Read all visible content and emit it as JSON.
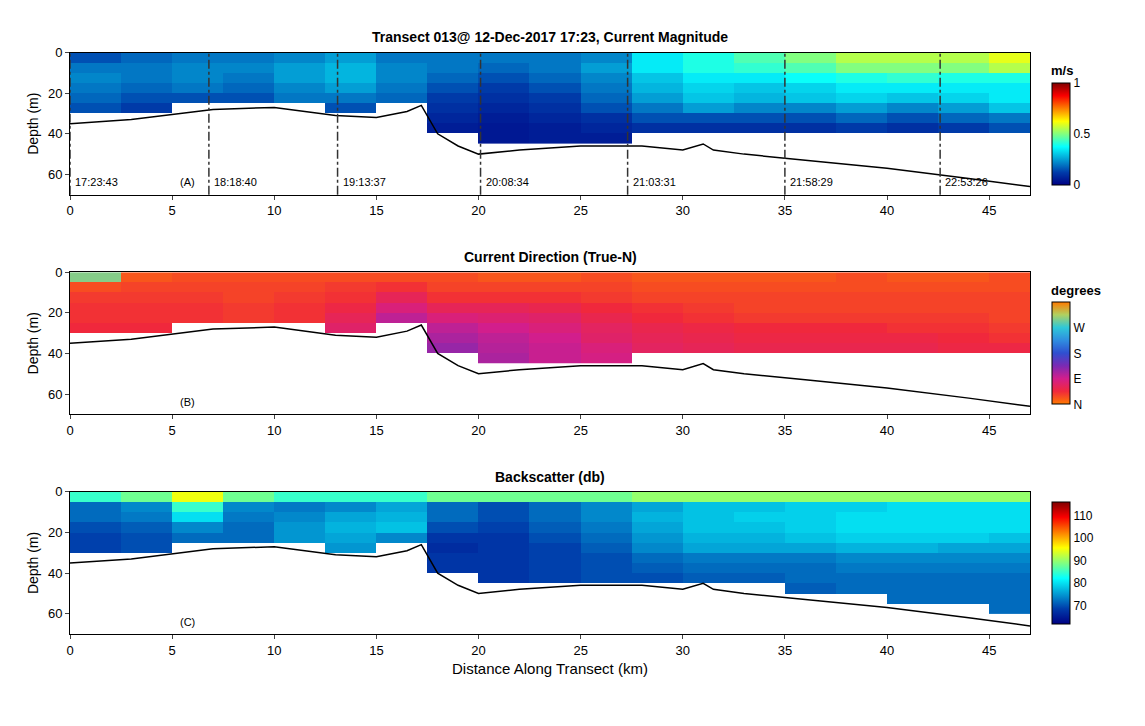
{
  "chart_data": [
    {
      "type": "heatmap",
      "title": "Transect 013@ 12-Dec-2017 17:23, Current Magnitude",
      "panel_label": "(A)",
      "y_label": "Depth (m)",
      "xlim": [
        0,
        47
      ],
      "xticks": [
        0,
        5,
        10,
        15,
        20,
        25,
        30,
        35,
        40,
        45
      ],
      "ylim": [
        70,
        0
      ],
      "yticks": [
        0,
        20,
        40,
        60
      ],
      "colorbar_title": "m/s",
      "zlim": [
        0,
        1
      ],
      "zticks": [
        0,
        0.5,
        1
      ],
      "x": [
        1.25,
        3.75,
        6.25,
        8.75,
        11.25,
        13.75,
        16.25,
        18.75,
        21.25,
        23.75,
        26.25,
        28.75,
        31.25,
        33.75,
        36.25,
        38.75,
        41.25,
        43.75,
        46.25
      ],
      "y": [
        2.5,
        7.5,
        12.5,
        17.5,
        22.5,
        27.5,
        32.5,
        37.5,
        42.5
      ],
      "z": [
        [
          0.15,
          0.18,
          0.2,
          0.2,
          0.22,
          0.25,
          0.2,
          0.2,
          0.2,
          0.2,
          0.22,
          0.35,
          0.4,
          0.45,
          0.5,
          0.55,
          0.55,
          0.55,
          0.6
        ],
        [
          0.2,
          0.2,
          0.22,
          0.22,
          0.25,
          0.28,
          0.22,
          0.2,
          0.18,
          0.2,
          0.25,
          0.35,
          0.4,
          0.42,
          0.45,
          0.5,
          0.5,
          0.5,
          0.55
        ],
        [
          0.22,
          0.2,
          0.22,
          0.2,
          0.25,
          0.28,
          0.22,
          0.18,
          0.15,
          0.18,
          0.22,
          0.3,
          0.35,
          0.35,
          0.38,
          0.4,
          0.42,
          0.4,
          0.4
        ],
        [
          0.2,
          0.18,
          0.2,
          0.18,
          0.22,
          0.25,
          0.2,
          0.15,
          0.12,
          0.15,
          0.2,
          0.28,
          0.32,
          0.3,
          0.32,
          0.35,
          0.35,
          0.35,
          0.35
        ],
        [
          0.18,
          0.15,
          0.15,
          0.15,
          0.2,
          0.2,
          0.18,
          0.12,
          0.1,
          0.12,
          0.18,
          0.25,
          0.3,
          0.28,
          0.3,
          0.32,
          0.3,
          0.32,
          0.35
        ],
        [
          0.15,
          0.12,
          null,
          null,
          null,
          0.15,
          null,
          0.1,
          0.08,
          0.1,
          0.15,
          0.2,
          0.25,
          0.22,
          0.22,
          0.25,
          0.22,
          0.25,
          0.3
        ],
        [
          null,
          null,
          null,
          null,
          null,
          null,
          null,
          0.08,
          0.06,
          0.08,
          0.1,
          0.15,
          0.15,
          0.15,
          0.15,
          0.18,
          0.15,
          0.18,
          0.2
        ],
        [
          null,
          null,
          null,
          null,
          null,
          null,
          null,
          0.06,
          0.05,
          0.06,
          0.08,
          0.1,
          0.1,
          0.1,
          0.1,
          0.12,
          0.1,
          0.12,
          0.15
        ],
        [
          null,
          null,
          null,
          null,
          null,
          null,
          null,
          null,
          0.05,
          0.06,
          0.06,
          null,
          null,
          null,
          null,
          null,
          null,
          null,
          null
        ]
      ],
      "bottom": {
        "x": [
          0,
          3,
          7,
          10,
          13,
          15,
          16.5,
          17.2,
          18,
          19,
          20,
          22,
          25,
          28,
          30,
          31,
          31.5,
          33,
          36,
          40,
          44,
          47
        ],
        "depth": [
          35,
          33,
          28,
          27,
          31,
          32,
          29,
          26,
          40,
          46,
          50,
          48,
          46,
          46,
          48,
          45,
          48,
          50,
          53,
          57,
          62,
          66
        ]
      },
      "markers": [
        {
          "x": 0,
          "label": "17:23:43"
        },
        {
          "x": 6.8,
          "label": "18:18:40"
        },
        {
          "x": 13.1,
          "label": "19:13:37"
        },
        {
          "x": 20.1,
          "label": "20:08:34"
        },
        {
          "x": 27.3,
          "label": "21:03:31"
        },
        {
          "x": 35,
          "label": "21:58:29"
        },
        {
          "x": 42.6,
          "label": "22:53:26"
        }
      ]
    },
    {
      "type": "heatmap",
      "title": "Current Direction (True-N)",
      "panel_label": "(B)",
      "y_label": "Depth (m)",
      "xlim": [
        0,
        47
      ],
      "xticks": [
        0,
        5,
        10,
        15,
        20,
        25,
        30,
        35,
        40,
        45
      ],
      "ylim": [
        70,
        0
      ],
      "yticks": [
        0,
        20,
        40,
        60
      ],
      "colorbar_title": "degrees",
      "zlim": [
        0,
        360
      ],
      "zticks": [
        {
          "value": 0,
          "label": "N"
        },
        {
          "value": 90,
          "label": "E"
        },
        {
          "value": 180,
          "label": "S"
        },
        {
          "value": 270,
          "label": "W"
        }
      ],
      "x": [
        1.25,
        3.75,
        6.25,
        8.75,
        11.25,
        13.75,
        16.25,
        18.75,
        21.25,
        23.75,
        26.25,
        28.75,
        31.25,
        33.75,
        36.25,
        38.75,
        41.25,
        43.75,
        46.25
      ],
      "y": [
        2.5,
        7.5,
        12.5,
        17.5,
        22.5,
        27.5,
        32.5,
        37.5,
        42.5
      ],
      "z": [
        [
          300,
          20,
          25,
          25,
          25,
          25,
          25,
          25,
          20,
          20,
          25,
          20,
          20,
          20,
          20,
          25,
          20,
          20,
          25
        ],
        [
          25,
          30,
          30,
          30,
          30,
          35,
          40,
          30,
          30,
          30,
          30,
          25,
          25,
          25,
          25,
          25,
          25,
          25,
          25
        ],
        [
          35,
          35,
          35,
          30,
          35,
          40,
          60,
          40,
          40,
          40,
          35,
          30,
          30,
          30,
          30,
          30,
          30,
          30,
          30
        ],
        [
          40,
          40,
          40,
          35,
          40,
          50,
          80,
          60,
          60,
          55,
          45,
          40,
          35,
          30,
          30,
          30,
          30,
          30,
          30
        ],
        [
          40,
          40,
          40,
          35,
          40,
          60,
          100,
          80,
          75,
          70,
          55,
          45,
          40,
          35,
          35,
          35,
          35,
          35,
          30
        ],
        [
          45,
          45,
          null,
          null,
          null,
          70,
          null,
          100,
          90,
          80,
          65,
          55,
          50,
          45,
          45,
          45,
          40,
          40,
          35
        ],
        [
          null,
          null,
          null,
          null,
          null,
          null,
          null,
          110,
          100,
          90,
          70,
          60,
          55,
          50,
          50,
          50,
          50,
          45,
          40
        ],
        [
          null,
          null,
          null,
          null,
          null,
          null,
          null,
          120,
          105,
          95,
          80,
          65,
          60,
          55,
          55,
          55,
          55,
          50,
          50
        ],
        [
          null,
          null,
          null,
          null,
          null,
          null,
          null,
          null,
          110,
          95,
          85,
          null,
          null,
          null,
          null,
          null,
          null,
          null,
          null
        ]
      ],
      "bottom": {
        "x": [
          0,
          3,
          7,
          10,
          13,
          15,
          16.5,
          17.2,
          18,
          19,
          20,
          22,
          25,
          28,
          30,
          31,
          31.5,
          33,
          36,
          40,
          44,
          47
        ],
        "depth": [
          35,
          33,
          28,
          27,
          31,
          32,
          29,
          26,
          40,
          46,
          50,
          48,
          46,
          46,
          48,
          45,
          48,
          50,
          53,
          57,
          62,
          66
        ]
      }
    },
    {
      "type": "heatmap",
      "title": "Backscatter (db)",
      "panel_label": "(C)",
      "x_label": "Distance Along Transect (km)",
      "y_label": "Depth (m)",
      "xlim": [
        0,
        47
      ],
      "xticks": [
        0,
        5,
        10,
        15,
        20,
        25,
        30,
        35,
        40,
        45
      ],
      "ylim": [
        70,
        0
      ],
      "yticks": [
        0,
        20,
        40,
        60
      ],
      "zlim": [
        62,
        116
      ],
      "zticks": [
        70,
        80,
        90,
        100,
        110
      ],
      "x": [
        1.25,
        3.75,
        6.25,
        8.75,
        11.25,
        13.75,
        16.25,
        18.75,
        21.25,
        23.75,
        26.25,
        28.75,
        31.25,
        33.75,
        36.25,
        38.75,
        41.25,
        43.75,
        46.25
      ],
      "y": [
        2.5,
        7.5,
        12.5,
        17.5,
        22.5,
        27.5,
        32.5,
        37.5,
        42.5,
        47.5,
        52.5,
        57.5
      ],
      "z": [
        [
          85,
          88,
          95,
          88,
          85,
          85,
          85,
          88,
          88,
          88,
          88,
          90,
          90,
          90,
          90,
          90,
          90,
          90,
          90
        ],
        [
          72,
          74,
          85,
          74,
          73,
          74,
          76,
          72,
          70,
          72,
          74,
          76,
          78,
          78,
          79,
          79,
          80,
          80,
          80
        ],
        [
          72,
          73,
          80,
          73,
          74,
          76,
          77,
          72,
          70,
          72,
          74,
          77,
          78,
          79,
          79,
          80,
          80,
          80,
          80
        ],
        [
          70,
          71,
          74,
          72,
          75,
          77,
          78,
          70,
          69,
          71,
          73,
          76,
          78,
          78,
          79,
          80,
          80,
          80,
          80
        ],
        [
          69,
          70,
          72,
          72,
          75,
          76,
          74,
          68,
          68,
          70,
          72,
          75,
          77,
          77,
          78,
          79,
          79,
          79,
          78
        ],
        [
          69,
          70,
          null,
          null,
          null,
          75,
          null,
          67,
          68,
          69,
          71,
          74,
          76,
          76,
          76,
          77,
          77,
          76,
          76
        ],
        [
          null,
          null,
          null,
          null,
          null,
          null,
          null,
          68,
          68,
          69,
          70,
          72,
          73,
          73,
          73,
          74,
          74,
          74,
          74
        ],
        [
          null,
          null,
          null,
          null,
          null,
          null,
          null,
          68,
          68,
          69,
          70,
          71,
          72,
          72,
          72,
          73,
          73,
          73,
          73
        ],
        [
          null,
          null,
          null,
          null,
          null,
          null,
          null,
          null,
          68,
          69,
          70,
          70,
          71,
          71,
          72,
          72,
          72,
          72,
          72
        ],
        [
          null,
          null,
          null,
          null,
          null,
          null,
          null,
          null,
          null,
          null,
          null,
          null,
          null,
          null,
          71,
          72,
          72,
          72,
          72
        ],
        [
          null,
          null,
          null,
          null,
          null,
          null,
          null,
          null,
          null,
          null,
          null,
          null,
          null,
          null,
          null,
          null,
          72,
          72,
          72
        ],
        [
          null,
          null,
          null,
          null,
          null,
          null,
          null,
          null,
          null,
          null,
          null,
          null,
          null,
          null,
          null,
          null,
          null,
          null,
          72
        ]
      ],
      "bottom": {
        "x": [
          0,
          3,
          7,
          10,
          13,
          15,
          16.5,
          17.2,
          18,
          19,
          20,
          22,
          25,
          28,
          30,
          31,
          31.5,
          33,
          36,
          40,
          44,
          47
        ],
        "depth": [
          35,
          33,
          28,
          27,
          31,
          32,
          29,
          26,
          40,
          46,
          50,
          48,
          46,
          46,
          48,
          45,
          48,
          50,
          53,
          57,
          62,
          66
        ]
      }
    }
  ]
}
